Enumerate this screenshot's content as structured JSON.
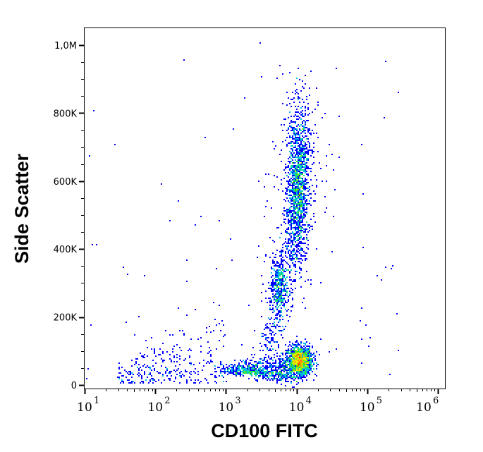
{
  "chart_data": {
    "type": "scatter",
    "subtype": "flow-cytometry density dot plot",
    "xlabel": "CD100 FITC",
    "ylabel": "Side Scatter",
    "x_scale": "log",
    "xlim": [
      10,
      1260000
    ],
    "ylim": [
      -10000,
      1050000
    ],
    "x_ticks": [
      {
        "value": 10,
        "base": "10",
        "exp": "1"
      },
      {
        "value": 100,
        "base": "10",
        "exp": "2"
      },
      {
        "value": 1000,
        "base": "10",
        "exp": "3"
      },
      {
        "value": 10000,
        "base": "10",
        "exp": "4"
      },
      {
        "value": 100000,
        "base": "10",
        "exp": "5"
      },
      {
        "value": 1000000,
        "base": "10",
        "exp": "6"
      }
    ],
    "y_ticks": [
      {
        "value": 0,
        "label": "0"
      },
      {
        "value": 200000,
        "label": "200K"
      },
      {
        "value": 400000,
        "label": "400K"
      },
      {
        "value": 600000,
        "label": "600K"
      },
      {
        "value": 800000,
        "label": "800K"
      },
      {
        "value": 1000000,
        "label": "1,0M"
      }
    ],
    "grid": false,
    "legend": "none",
    "color_scale": [
      "#0000ff",
      "#00a0ff",
      "#00e0c0",
      "#40e000",
      "#ffff00",
      "#ff8000",
      "#ff0000"
    ],
    "populations": [
      {
        "x_center": 11000,
        "y_center": 70000,
        "x_spread_decades": 0.09,
        "y_spread": 22000,
        "events": 1400
      },
      {
        "x_range": [
          1000,
          8000
        ],
        "y_center": 45000,
        "y_spread": 18000,
        "events": 700
      },
      {
        "x_center": 10500,
        "y_center": 590000,
        "x_spread_decades": 0.065,
        "y_spread": 120000,
        "events": 1700
      },
      {
        "x_center": 5600,
        "y_center": 290000,
        "x_spread_decades": 0.06,
        "y_spread": 40000,
        "events": 320
      },
      {
        "x_range": [
          4000,
          9000
        ],
        "y_range": [
          100000,
          420000
        ],
        "events": 300
      },
      {
        "x_range": [
          30,
          1000
        ],
        "y_range": [
          0,
          200000
        ],
        "events": 300
      },
      {
        "x_center": 11000,
        "y_center": 1050000,
        "x_spread_decades": 0.12,
        "events": 220
      }
    ]
  }
}
